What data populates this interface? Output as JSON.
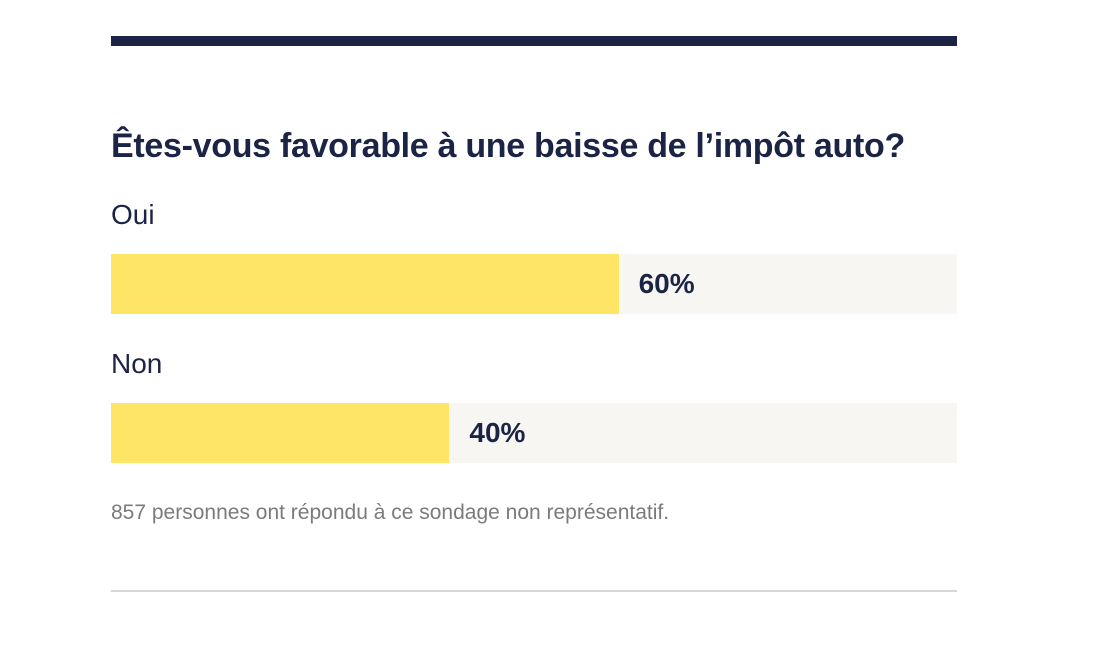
{
  "poll": {
    "question": "Êtes-vous favorable à une baisse de l’impôt auto?",
    "options": [
      {
        "label": "Oui",
        "percent": 60,
        "percent_label": "60%"
      },
      {
        "label": "Non",
        "percent": 40,
        "percent_label": "40%"
      }
    ],
    "note": "857 personnes ont répondu à ce sondage non représentatif.",
    "colors": {
      "rule": "#1c2445",
      "bar_fill": "#ffe566",
      "bar_track": "#f7f6f2",
      "text": "#1c2445",
      "note": "#7b7b7b"
    }
  }
}
